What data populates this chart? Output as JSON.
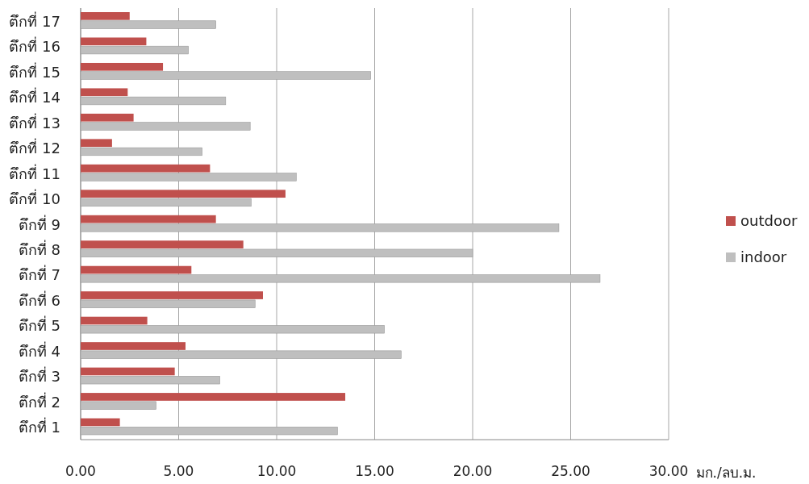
{
  "chart_data": {
    "type": "bar",
    "orientation": "horizontal",
    "xlabel": "มก./ลบ.ม.",
    "categories": [
      "ตึกที่ 17",
      "ตึกที่ 16",
      "ตึกที่ 15",
      "ตึกที่ 14",
      "ตึกที่ 13",
      "ตึกที่ 12",
      "ตึกที่ 11",
      "ตึกที่ 10",
      "ตึกที่ 9",
      "ตึกที่ 8",
      "ตึกที่ 7",
      "ตึกที่ 6",
      "ตึกที่ 5",
      "ตึกที่ 4",
      "ตึกที่ 3",
      "ตึกที่ 2",
      "ตึกที่ 1"
    ],
    "series": [
      {
        "name": "outdoor",
        "color": "#c0504d",
        "values": [
          2.5,
          3.35,
          4.2,
          2.4,
          2.7,
          1.6,
          6.6,
          10.45,
          6.9,
          8.3,
          5.65,
          9.3,
          3.4,
          5.35,
          4.8,
          13.5,
          2.0
        ]
      },
      {
        "name": "indoor",
        "color": "#bfbfbf",
        "values": [
          6.9,
          5.5,
          14.8,
          7.4,
          8.65,
          6.2,
          11.0,
          8.7,
          24.4,
          20.0,
          26.5,
          8.9,
          15.5,
          16.35,
          7.1,
          3.85,
          13.1
        ]
      }
    ],
    "xlim": [
      0,
      30
    ],
    "xticks": [
      {
        "value": 0,
        "label": "0.00"
      },
      {
        "value": 5,
        "label": "5.00"
      },
      {
        "value": 10,
        "label": "10.00"
      },
      {
        "value": 15,
        "label": "15.00"
      },
      {
        "value": 20,
        "label": "20.00"
      },
      {
        "value": 25,
        "label": "25.00"
      },
      {
        "value": 30,
        "label": "30.00"
      }
    ],
    "grid": "x",
    "legend": "right"
  }
}
